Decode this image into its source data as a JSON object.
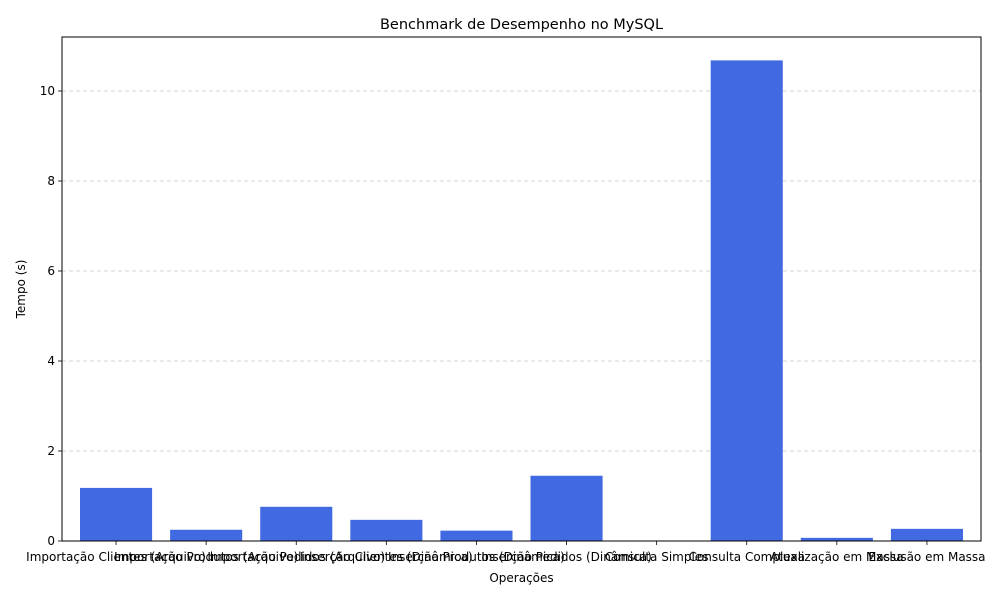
{
  "chart_data": {
    "type": "bar",
    "title": "Benchmark de Desempenho no MySQL",
    "xlabel": "Operações",
    "ylabel": "Tempo (s)",
    "categories": [
      "Importação Clientes (Arquivo)",
      "Importação Produtos (Arquivo)",
      "Importação Pedidos (Arquivo)",
      "Inserção Clientes (Dinâmica)",
      "Inserção Produtos (Dinâmica)",
      "Inserção Pedidos (Dinâmica)",
      "Consulta Simples",
      "Consulta Complexa",
      "Atualização em Massa",
      "Exclusão em Massa"
    ],
    "values": [
      1.18,
      0.25,
      0.76,
      0.47,
      0.23,
      1.45,
      0.0,
      10.68,
      0.07,
      0.27
    ],
    "ylim": [
      0,
      11.2
    ],
    "yticks": [
      0,
      2,
      4,
      6,
      8,
      10
    ],
    "grid": "y-dashed",
    "bar_color": "#4169e1"
  }
}
